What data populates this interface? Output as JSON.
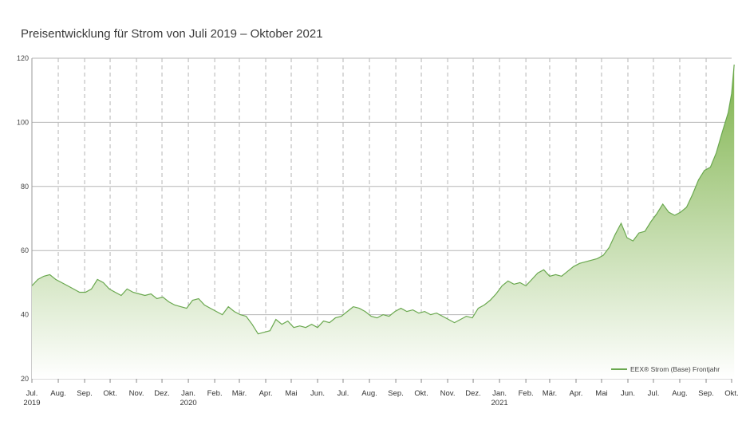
{
  "chart_data": {
    "type": "area",
    "title": "Preisentwicklung für Strom von Juli 2019 – Oktober 2021",
    "xlabel": "",
    "ylabel": "",
    "ylim": [
      20,
      120
    ],
    "yticks": [
      20,
      40,
      60,
      80,
      100,
      120
    ],
    "grid": true,
    "legend_position": "bottom-right",
    "colors": {
      "line": "#6aa84f",
      "fill_top": "#7db24a",
      "fill_bottom": "#ffffff",
      "grid": "#b5b5b5"
    },
    "month_ticks": [
      {
        "label": "Jul.",
        "year": "2019"
      },
      {
        "label": "Aug.",
        "year": ""
      },
      {
        "label": "Sep.",
        "year": ""
      },
      {
        "label": "Okt.",
        "year": ""
      },
      {
        "label": "Nov.",
        "year": ""
      },
      {
        "label": "Dez.",
        "year": ""
      },
      {
        "label": "Jan.",
        "year": "2020"
      },
      {
        "label": "Feb.",
        "year": ""
      },
      {
        "label": "Mär.",
        "year": ""
      },
      {
        "label": "Apr.",
        "year": ""
      },
      {
        "label": "Mai",
        "year": ""
      },
      {
        "label": "Jun.",
        "year": ""
      },
      {
        "label": "Jul.",
        "year": ""
      },
      {
        "label": "Aug.",
        "year": ""
      },
      {
        "label": "Sep.",
        "year": ""
      },
      {
        "label": "Okt.",
        "year": ""
      },
      {
        "label": "Nov.",
        "year": ""
      },
      {
        "label": "Dez.",
        "year": ""
      },
      {
        "label": "Jan.",
        "year": "2021"
      },
      {
        "label": "Feb.",
        "year": ""
      },
      {
        "label": "Mär.",
        "year": ""
      },
      {
        "label": "Apr.",
        "year": ""
      },
      {
        "label": "Mai",
        "year": ""
      },
      {
        "label": "Jun.",
        "year": ""
      },
      {
        "label": "Jul.",
        "year": ""
      },
      {
        "label": "Aug.",
        "year": ""
      },
      {
        "label": "Sep.",
        "year": ""
      },
      {
        "label": "Okt.",
        "year": ""
      }
    ],
    "series": [
      {
        "name": "EEX® Strom (Base) Frontjahr",
        "points": [
          [
            "2019-07-01",
            49
          ],
          [
            "2019-07-08",
            51
          ],
          [
            "2019-07-15",
            52
          ],
          [
            "2019-07-22",
            52.5
          ],
          [
            "2019-07-29",
            51
          ],
          [
            "2019-08-05",
            50
          ],
          [
            "2019-08-12",
            49
          ],
          [
            "2019-08-19",
            48
          ],
          [
            "2019-08-26",
            47
          ],
          [
            "2019-09-02",
            47
          ],
          [
            "2019-09-09",
            48
          ],
          [
            "2019-09-16",
            51
          ],
          [
            "2019-09-23",
            50
          ],
          [
            "2019-09-30",
            48
          ],
          [
            "2019-10-07",
            47
          ],
          [
            "2019-10-14",
            46
          ],
          [
            "2019-10-21",
            48
          ],
          [
            "2019-10-28",
            47
          ],
          [
            "2019-11-04",
            46.5
          ],
          [
            "2019-11-11",
            46
          ],
          [
            "2019-11-18",
            46.5
          ],
          [
            "2019-11-25",
            45
          ],
          [
            "2019-12-02",
            45.5
          ],
          [
            "2019-12-09",
            44
          ],
          [
            "2019-12-16",
            43
          ],
          [
            "2019-12-23",
            42.5
          ],
          [
            "2019-12-30",
            42
          ],
          [
            "2020-01-06",
            44.5
          ],
          [
            "2020-01-13",
            45
          ],
          [
            "2020-01-20",
            43
          ],
          [
            "2020-01-27",
            42
          ],
          [
            "2020-02-03",
            41
          ],
          [
            "2020-02-10",
            40
          ],
          [
            "2020-02-17",
            42.5
          ],
          [
            "2020-02-24",
            41
          ],
          [
            "2020-03-02",
            40
          ],
          [
            "2020-03-09",
            39.5
          ],
          [
            "2020-03-16",
            37
          ],
          [
            "2020-03-23",
            34
          ],
          [
            "2020-03-30",
            34.5
          ],
          [
            "2020-04-06",
            35
          ],
          [
            "2020-04-13",
            38.5
          ],
          [
            "2020-04-20",
            37
          ],
          [
            "2020-04-27",
            38
          ],
          [
            "2020-05-04",
            36
          ],
          [
            "2020-05-11",
            36.5
          ],
          [
            "2020-05-18",
            36
          ],
          [
            "2020-05-25",
            37
          ],
          [
            "2020-06-01",
            36
          ],
          [
            "2020-06-08",
            38
          ],
          [
            "2020-06-15",
            37.5
          ],
          [
            "2020-06-22",
            39
          ],
          [
            "2020-06-29",
            39.5
          ],
          [
            "2020-07-06",
            41
          ],
          [
            "2020-07-13",
            42.5
          ],
          [
            "2020-07-20",
            42
          ],
          [
            "2020-07-27",
            41
          ],
          [
            "2020-08-03",
            39.5
          ],
          [
            "2020-08-10",
            39
          ],
          [
            "2020-08-17",
            40
          ],
          [
            "2020-08-24",
            39.5
          ],
          [
            "2020-08-31",
            41
          ],
          [
            "2020-09-07",
            42
          ],
          [
            "2020-09-14",
            41
          ],
          [
            "2020-09-21",
            41.5
          ],
          [
            "2020-09-28",
            40.5
          ],
          [
            "2020-10-05",
            41
          ],
          [
            "2020-10-12",
            40
          ],
          [
            "2020-10-19",
            40.5
          ],
          [
            "2020-10-26",
            39.5
          ],
          [
            "2020-11-02",
            38.5
          ],
          [
            "2020-11-09",
            37.5
          ],
          [
            "2020-11-16",
            38.5
          ],
          [
            "2020-11-23",
            39.5
          ],
          [
            "2020-11-30",
            39
          ],
          [
            "2020-12-07",
            42
          ],
          [
            "2020-12-14",
            43
          ],
          [
            "2020-12-21",
            44.5
          ],
          [
            "2020-12-28",
            46.5
          ],
          [
            "2021-01-04",
            49
          ],
          [
            "2021-01-11",
            50.5
          ],
          [
            "2021-01-18",
            49.5
          ],
          [
            "2021-01-25",
            50
          ],
          [
            "2021-02-01",
            49
          ],
          [
            "2021-02-08",
            51
          ],
          [
            "2021-02-15",
            53
          ],
          [
            "2021-02-22",
            54
          ],
          [
            "2021-03-01",
            52
          ],
          [
            "2021-03-08",
            52.5
          ],
          [
            "2021-03-15",
            52
          ],
          [
            "2021-03-22",
            53.5
          ],
          [
            "2021-03-29",
            55
          ],
          [
            "2021-04-05",
            56
          ],
          [
            "2021-04-12",
            56.5
          ],
          [
            "2021-04-19",
            57
          ],
          [
            "2021-04-26",
            57.5
          ],
          [
            "2021-05-03",
            58.5
          ],
          [
            "2021-05-10",
            61
          ],
          [
            "2021-05-17",
            65
          ],
          [
            "2021-05-24",
            68.5
          ],
          [
            "2021-05-31",
            64
          ],
          [
            "2021-06-07",
            63
          ],
          [
            "2021-06-14",
            65.5
          ],
          [
            "2021-06-21",
            66
          ],
          [
            "2021-06-28",
            69
          ],
          [
            "2021-07-05",
            71.5
          ],
          [
            "2021-07-12",
            74.5
          ],
          [
            "2021-07-19",
            72
          ],
          [
            "2021-07-26",
            71
          ],
          [
            "2021-08-02",
            72
          ],
          [
            "2021-08-09",
            73.5
          ],
          [
            "2021-08-16",
            77.5
          ],
          [
            "2021-08-23",
            82
          ],
          [
            "2021-08-30",
            85
          ],
          [
            "2021-09-06",
            86
          ],
          [
            "2021-09-13",
            90.5
          ],
          [
            "2021-09-20",
            97
          ],
          [
            "2021-09-27",
            103
          ],
          [
            "2021-10-01",
            109
          ],
          [
            "2021-10-04",
            118
          ]
        ]
      }
    ]
  }
}
